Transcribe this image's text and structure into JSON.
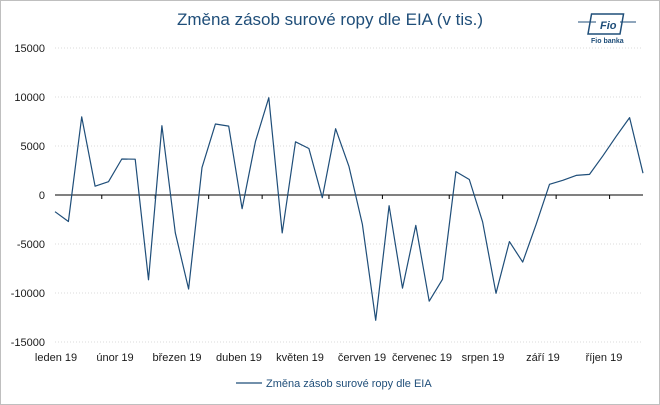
{
  "chart_data": {
    "type": "line",
    "title": "Změna zásob surové ropy dle EIA (v tis.)",
    "xlabel": "",
    "ylabel": "",
    "ylim": [
      -15000,
      15000
    ],
    "y_ticks": [
      "15000",
      "10000",
      "5000",
      "0",
      "-5000",
      "-10000",
      "-15000"
    ],
    "y_tick_values": [
      15000,
      10000,
      5000,
      0,
      -5000,
      -10000,
      -15000
    ],
    "x_tick_labels": [
      "leden 19",
      "únor 19",
      "březen 19",
      "duben 19",
      "květen 19",
      "červen 19",
      "červenec 19",
      "srpen 19",
      "září 19",
      "říjen 19"
    ],
    "grid": "horizontal-dotted",
    "legend_position": "bottom",
    "series": [
      {
        "name": "Změna zásob surové ropy dle EIA",
        "color": "#1f4e79",
        "values": [
          -1700,
          -2700,
          7970,
          900,
          1360,
          3670,
          3650,
          -8650,
          7070,
          -3860,
          -9590,
          2800,
          7240,
          7030,
          -1400,
          5480,
          9930,
          -3870,
          5430,
          4740,
          -280,
          6770,
          2900,
          -3000,
          -12790,
          -1090,
          -9500,
          -3100,
          -10840,
          -8600,
          2390,
          1580,
          -2730,
          -10030,
          -4760,
          -6850,
          -3000,
          1090,
          1500,
          2000,
          2100,
          4000,
          6000,
          7900,
          2220
        ]
      }
    ]
  },
  "logo": {
    "text": "Fio banka"
  }
}
